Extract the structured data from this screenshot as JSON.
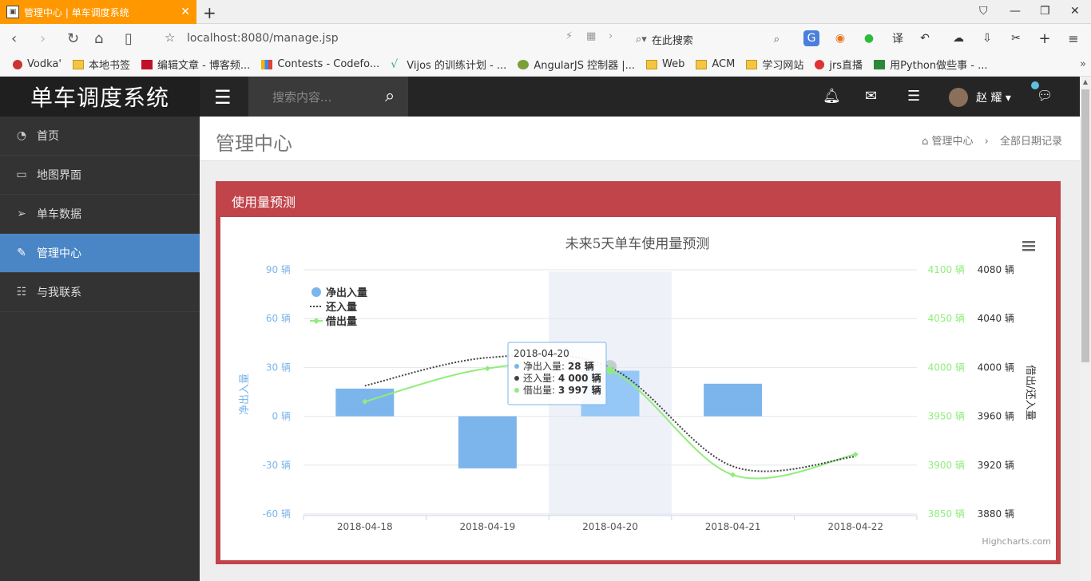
{
  "browser": {
    "tab_title": "管理中心 | 单车调度系统",
    "address": "localhost:8080/manage.jsp",
    "search_placeholder": "在此搜索",
    "bookmarks": [
      "Vodka'",
      "本地书签",
      "编辑文章 - 博客频...",
      "Contests - Codefo...",
      "Vijos 的训练计划 - ...",
      "AngularJS 控制器 |...",
      "Web",
      "ACM",
      "学习网站",
      "jrs直播",
      "用Python做些事 - ..."
    ]
  },
  "app": {
    "brand": "单车调度系统",
    "search_placeholder": "搜索内容...",
    "username": "赵 耀"
  },
  "sidebar": {
    "items": [
      {
        "label": "首页",
        "icon": "dashboard-icon"
      },
      {
        "label": "地图界面",
        "icon": "desktop-icon"
      },
      {
        "label": "单车数据",
        "icon": "paper-plane-icon"
      },
      {
        "label": "管理中心",
        "icon": "edit-icon"
      },
      {
        "label": "与我联系",
        "icon": "list-icon"
      }
    ],
    "active_index": 3
  },
  "page": {
    "title": "管理中心",
    "breadcrumb": [
      "管理中心",
      "全部日期记录"
    ]
  },
  "panel": {
    "title": "使用量预测"
  },
  "chart_data": {
    "type": "bar",
    "title": "未来5天单车使用量预测",
    "categories": [
      "2018-04-18",
      "2018-04-19",
      "2018-04-20",
      "2018-04-21",
      "2018-04-22"
    ],
    "series": [
      {
        "name": "净出入量",
        "type": "bar",
        "axis": "left",
        "values": [
          17,
          -32,
          28,
          20,
          null
        ]
      },
      {
        "name": "还入量",
        "type": "spline-dotted",
        "axis": "right",
        "values": [
          3985,
          4008,
          4000,
          3919,
          3927
        ]
      },
      {
        "name": "借出量",
        "type": "spline",
        "axis": "middle",
        "values": [
          3965,
          3999,
          3997,
          3890,
          3911
        ]
      }
    ],
    "axes": {
      "left": {
        "title": "净出入量",
        "ticks": [
          "90 辆",
          "60 辆",
          "30 辆",
          "0 辆",
          "-30 辆",
          "-60 辆"
        ],
        "range": [
          -60,
          90
        ]
      },
      "middle": {
        "ticks": [
          "4100 辆",
          "4050 辆",
          "4000 辆",
          "3950 辆",
          "3900 辆",
          "3850 辆"
        ],
        "range": [
          3850,
          4100
        ]
      },
      "right": {
        "title": "借出/还入量",
        "ticks": [
          "4080 辆",
          "4040 辆",
          "4000 辆",
          "3960 辆",
          "3920 辆",
          "3880 辆"
        ],
        "range": [
          3880,
          4080
        ]
      }
    },
    "tooltip": {
      "date": "2018-04-20",
      "rows": [
        {
          "label": "净出入量",
          "value": "28 辆"
        },
        {
          "label": "还入量",
          "value": "4 000 辆"
        },
        {
          "label": "借出量",
          "value": "3 997 辆"
        }
      ]
    },
    "credits": "Highcharts.com",
    "colors": {
      "bar": "#7cb5ec",
      "bar_hover": "#95c8f7",
      "returned": "#434348",
      "borrowed": "#90ed7d",
      "left_axis": "#7cb5ec",
      "middle_axis": "#90ed7d",
      "right_axis": "#333333"
    }
  }
}
